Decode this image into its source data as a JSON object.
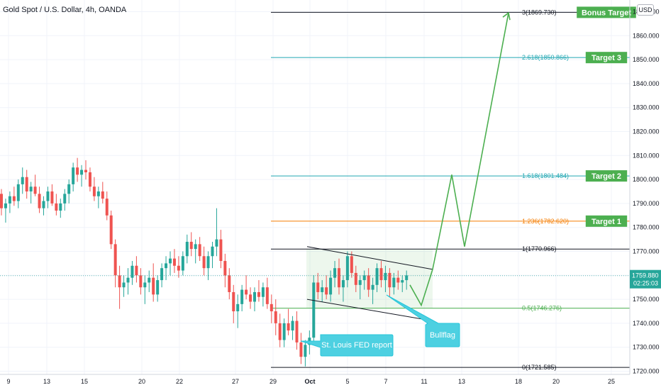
{
  "chart_title": "Gold Spot / U.S. Dollar, 4h, OANDA",
  "currency_badge": "USD",
  "chart_data": {
    "type": "candlestick",
    "ylim": [
      1720,
      1870
    ],
    "y_ticks": [
      "1870.000",
      "1860.000",
      "1850.000",
      "1840.000",
      "1830.000",
      "1820.000",
      "1810.000",
      "1800.000",
      "1790.000",
      "1780.000",
      "1770.000",
      "1760.000",
      "1750.000",
      "1740.000",
      "1730.000",
      "1720.000"
    ],
    "x_ticks": [
      "9",
      "13",
      "15",
      "20",
      "22",
      "27",
      "29",
      "Oct",
      "5",
      "7",
      "11",
      "13",
      "18",
      "20",
      "25"
    ],
    "current_price": "1759.880",
    "countdown": "02:25:03",
    "fib_levels": [
      {
        "label": "3(1869.730)",
        "value": 1869.73,
        "color": "#131722"
      },
      {
        "label": "2.618(1850.866)",
        "value": 1850.866,
        "color": "#22a7b3"
      },
      {
        "label": "1.618(1801.484)",
        "value": 1801.484,
        "color": "#22a7b3"
      },
      {
        "label": "1.236(1782.620)",
        "value": 1782.62,
        "color": "#f57c00"
      },
      {
        "label": "1(1770.966)",
        "value": 1770.966,
        "color": "#131722"
      },
      {
        "label": "0.5(1746.276)",
        "value": 1746.276,
        "color": "#4caf50"
      },
      {
        "label": "0(1721.585)",
        "value": 1721.585,
        "color": "#131722"
      }
    ],
    "targets": [
      {
        "label": "Bonus Target",
        "value": 1869.73
      },
      {
        "label": "Target 3",
        "value": 1850.866
      },
      {
        "label": "Target 2",
        "value": 1801.484
      },
      {
        "label": "Target 1",
        "value": 1782.62
      }
    ],
    "annotations": [
      "St. Louis FED report",
      "Bullflag"
    ],
    "candles": [
      [
        1794,
        1796,
        1785,
        1788
      ],
      [
        1788,
        1792,
        1782,
        1790
      ],
      [
        1790,
        1795,
        1786,
        1793
      ],
      [
        1793,
        1797,
        1789,
        1791
      ],
      [
        1791,
        1800,
        1788,
        1798
      ],
      [
        1798,
        1805,
        1794,
        1801
      ],
      [
        1801,
        1804,
        1792,
        1795
      ],
      [
        1795,
        1799,
        1790,
        1797
      ],
      [
        1797,
        1802,
        1793,
        1794
      ],
      [
        1794,
        1797,
        1786,
        1788
      ],
      [
        1788,
        1793,
        1785,
        1791
      ],
      [
        1791,
        1797,
        1788,
        1795
      ],
      [
        1795,
        1798,
        1789,
        1790
      ],
      [
        1790,
        1794,
        1785,
        1787
      ],
      [
        1787,
        1792,
        1784,
        1790
      ],
      [
        1790,
        1796,
        1787,
        1794
      ],
      [
        1794,
        1800,
        1790,
        1798
      ],
      [
        1798,
        1807,
        1795,
        1805
      ],
      [
        1805,
        1809,
        1799,
        1802
      ],
      [
        1802,
        1806,
        1797,
        1804
      ],
      [
        1804,
        1808,
        1800,
        1803
      ],
      [
        1803,
        1805,
        1795,
        1797
      ],
      [
        1797,
        1801,
        1791,
        1793
      ],
      [
        1793,
        1797,
        1788,
        1795
      ],
      [
        1795,
        1799,
        1790,
        1792
      ],
      [
        1792,
        1795,
        1783,
        1785
      ],
      [
        1785,
        1787,
        1771,
        1773
      ],
      [
        1773,
        1775,
        1755,
        1760
      ],
      [
        1760,
        1764,
        1746,
        1755
      ],
      [
        1755,
        1760,
        1751,
        1757
      ],
      [
        1757,
        1763,
        1752,
        1759
      ],
      [
        1759,
        1766,
        1756,
        1764
      ],
      [
        1764,
        1768,
        1757,
        1760
      ],
      [
        1760,
        1763,
        1752,
        1755
      ],
      [
        1755,
        1760,
        1748,
        1757
      ],
      [
        1757,
        1762,
        1753,
        1759
      ],
      [
        1759,
        1765,
        1749,
        1752
      ],
      [
        1752,
        1760,
        1749,
        1758
      ],
      [
        1758,
        1765,
        1755,
        1763
      ],
      [
        1763,
        1768,
        1758,
        1765
      ],
      [
        1765,
        1770,
        1760,
        1767
      ],
      [
        1767,
        1771,
        1761,
        1764
      ],
      [
        1764,
        1768,
        1759,
        1762
      ],
      [
        1762,
        1770,
        1760,
        1768
      ],
      [
        1768,
        1777,
        1765,
        1774
      ],
      [
        1774,
        1778,
        1768,
        1771
      ],
      [
        1771,
        1775,
        1765,
        1773
      ],
      [
        1773,
        1776,
        1766,
        1768
      ],
      [
        1768,
        1772,
        1760,
        1763
      ],
      [
        1763,
        1770,
        1758,
        1768
      ],
      [
        1768,
        1774,
        1763,
        1772
      ],
      [
        1772,
        1788,
        1768,
        1775
      ],
      [
        1775,
        1779,
        1763,
        1766
      ],
      [
        1766,
        1769,
        1755,
        1760
      ],
      [
        1760,
        1763,
        1750,
        1753
      ],
      [
        1753,
        1756,
        1740,
        1745
      ],
      [
        1745,
        1752,
        1738,
        1748
      ],
      [
        1748,
        1756,
        1745,
        1754
      ],
      [
        1754,
        1760,
        1750,
        1752
      ],
      [
        1752,
        1755,
        1746,
        1749
      ],
      [
        1749,
        1755,
        1745,
        1753
      ],
      [
        1753,
        1758,
        1749,
        1751
      ],
      [
        1751,
        1757,
        1747,
        1755
      ],
      [
        1755,
        1759,
        1746,
        1748
      ],
      [
        1748,
        1752,
        1740,
        1745
      ],
      [
        1745,
        1750,
        1735,
        1740
      ],
      [
        1740,
        1744,
        1730,
        1733
      ],
      [
        1733,
        1742,
        1730,
        1740
      ],
      [
        1740,
        1746,
        1735,
        1737
      ],
      [
        1737,
        1743,
        1733,
        1741
      ],
      [
        1741,
        1745,
        1729,
        1732
      ],
      [
        1732,
        1736,
        1723,
        1726
      ],
      [
        1726,
        1733,
        1722,
        1731
      ],
      [
        1731,
        1737,
        1727,
        1734
      ],
      [
        1734,
        1760,
        1731,
        1757
      ],
      [
        1757,
        1761,
        1750,
        1753
      ],
      [
        1753,
        1758,
        1749,
        1755
      ],
      [
        1755,
        1760,
        1750,
        1752
      ],
      [
        1752,
        1762,
        1749,
        1759
      ],
      [
        1759,
        1766,
        1755,
        1763
      ],
      [
        1763,
        1767,
        1752,
        1755
      ],
      [
        1755,
        1760,
        1749,
        1758
      ],
      [
        1758,
        1770,
        1755,
        1768
      ],
      [
        1768,
        1770,
        1759,
        1761
      ],
      [
        1761,
        1764,
        1753,
        1756
      ],
      [
        1756,
        1760,
        1750,
        1758
      ],
      [
        1758,
        1762,
        1754,
        1760
      ],
      [
        1760,
        1763,
        1751,
        1754
      ],
      [
        1754,
        1759,
        1748,
        1756
      ],
      [
        1756,
        1765,
        1753,
        1763
      ],
      [
        1763,
        1766,
        1755,
        1758
      ],
      [
        1758,
        1764,
        1753,
        1761
      ],
      [
        1761,
        1763,
        1751,
        1755
      ],
      [
        1755,
        1761,
        1752,
        1759
      ],
      [
        1759,
        1762,
        1754,
        1757
      ],
      [
        1757,
        1760,
        1753,
        1758
      ],
      [
        1758,
        1762,
        1754,
        1760
      ]
    ]
  }
}
